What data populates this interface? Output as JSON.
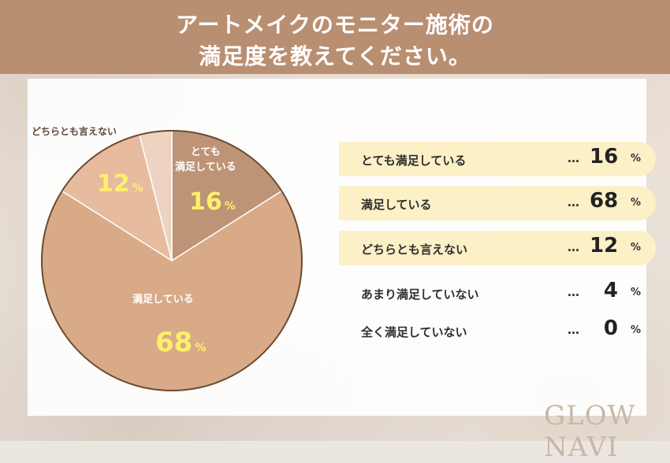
{
  "title": {
    "line1": "アートメイクのモニター施術の",
    "line2": "満足度を教えてください。"
  },
  "chart_data": {
    "type": "pie",
    "unit": "%",
    "slices": [
      {
        "label": "とても満足している",
        "value": 16,
        "color": "#bd9475",
        "highlight": true
      },
      {
        "label": "満足している",
        "value": 68,
        "color": "#d8aa88",
        "highlight": true
      },
      {
        "label": "どちらとも言えない",
        "value": 12,
        "color": "#e6bb9e",
        "highlight": true
      },
      {
        "label": "あまり満足していない",
        "value": 4,
        "color": "#edd4c2",
        "highlight": false
      },
      {
        "label": "全く満足していない",
        "value": 0,
        "color": "#f3e4d8",
        "highlight": false
      }
    ],
    "pie_labels": {
      "s0_line1": "とても",
      "s0_line2": "満足している",
      "s1": "満足している",
      "s2": "どちらとも言えない"
    },
    "legend_leader": "…"
  },
  "logo": {
    "text": "GLOW NAVI"
  },
  "colors": {
    "header": "#b98f72",
    "outline": "#6b4a30",
    "value_label": "#fff06a",
    "legend_highlight": "#fcf0c6"
  }
}
